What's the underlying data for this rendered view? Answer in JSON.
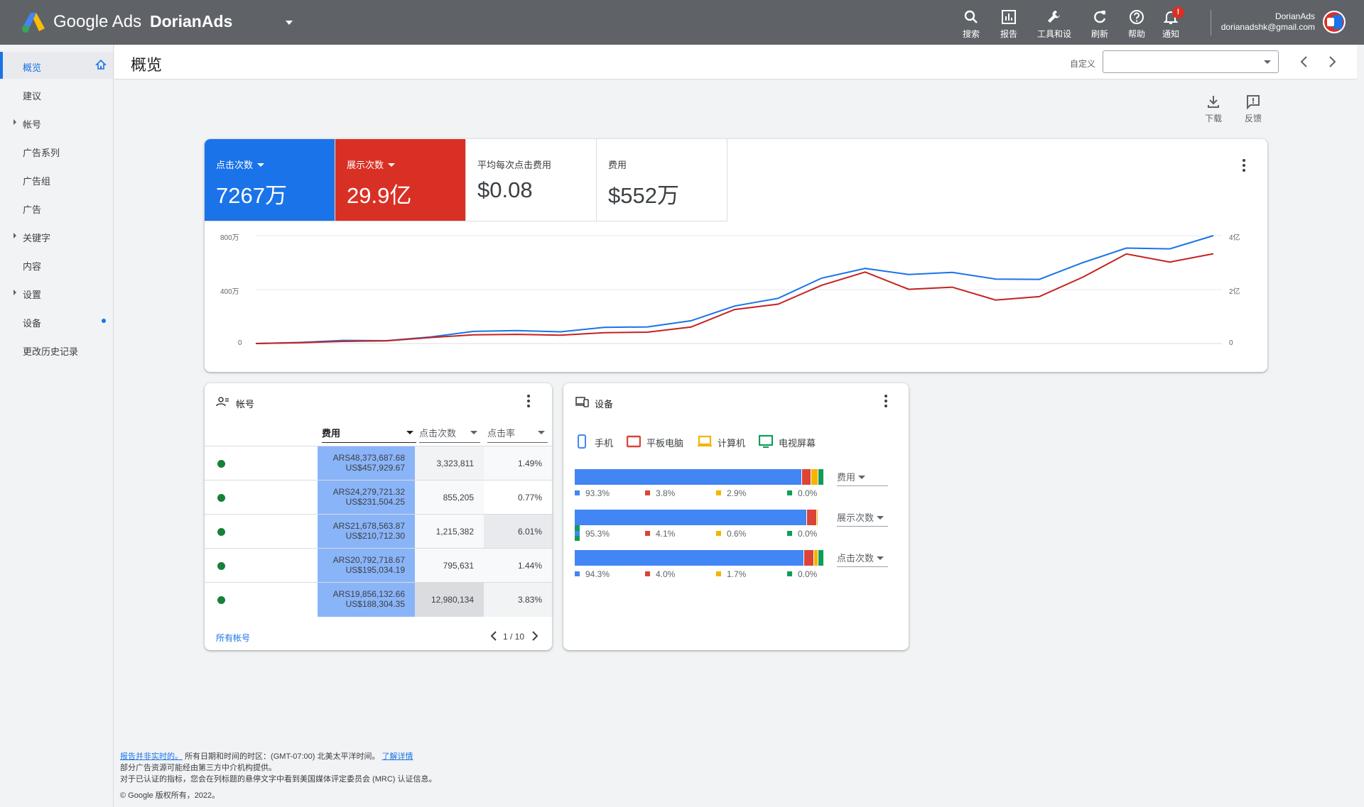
{
  "app": {
    "brand": "Google Ads",
    "account": "DorianAds"
  },
  "toolbar": [
    {
      "icon": "search-icon",
      "label": "搜索"
    },
    {
      "icon": "reports-icon",
      "label": "报告"
    },
    {
      "icon": "wrench-icon",
      "label": "工具和设置"
    },
    {
      "icon": "refresh-icon",
      "label": "刷新"
    },
    {
      "icon": "help-icon",
      "label": "帮助"
    },
    {
      "icon": "bell-icon",
      "label": "通知",
      "badge": "!"
    }
  ],
  "user": {
    "name": "DorianAds",
    "email": "dorianadshk@gmail.com"
  },
  "sidebar": {
    "items": [
      {
        "label": "概览",
        "active": true,
        "icon": "home-icon"
      },
      {
        "label": "建议"
      },
      {
        "label": "帐号",
        "expandable": true
      },
      {
        "label": "广告系列"
      },
      {
        "label": "广告组"
      },
      {
        "label": "广告"
      },
      {
        "label": "关键字",
        "expandable": true
      },
      {
        "label": "内容"
      },
      {
        "label": "设置",
        "expandable": true
      },
      {
        "label": "设备",
        "dot": true
      },
      {
        "label": "更改历史记录"
      }
    ]
  },
  "header": {
    "title": "概览",
    "custom_label": "自定义",
    "date_value": ""
  },
  "tools": {
    "download": "下载",
    "feedback": "反馈"
  },
  "metrics": [
    {
      "label": "点击次数",
      "value": "7267万",
      "color": "#1a73e8"
    },
    {
      "label": "展示次数",
      "value": "29.9亿",
      "color": "#d93025"
    },
    {
      "label": "平均每次点击费用",
      "value": "$0.08"
    },
    {
      "label": "费用",
      "value": "$552万"
    }
  ],
  "chart_data": {
    "type": "line",
    "left_axis": {
      "ticks": [
        "800万",
        "400万",
        "0"
      ],
      "range": [
        0,
        8000000
      ]
    },
    "right_axis": {
      "ticks": [
        "4亿",
        "2亿",
        "0"
      ],
      "range": [
        0,
        400000000
      ]
    },
    "series": [
      {
        "color": "#1a73e8",
        "axis": "left",
        "values": [
          0,
          80000,
          230000,
          210000,
          480000,
          900000,
          960000,
          870000,
          1200000,
          1230000,
          1690000,
          2780000,
          3350000,
          4850000,
          5570000,
          5120000,
          5280000,
          4780000,
          4760000,
          6000000,
          7080000,
          7020000,
          8000000
        ]
      },
      {
        "color": "#c5221f",
        "axis": "right",
        "values": [
          0,
          3000000,
          8000000,
          10000000,
          22000000,
          32000000,
          34000000,
          31000000,
          40000000,
          42000000,
          61000000,
          126000000,
          146000000,
          216000000,
          265000000,
          201000000,
          209000000,
          161000000,
          174000000,
          246000000,
          332000000,
          302000000,
          333000000
        ]
      }
    ]
  },
  "accounts": {
    "title": "帐号",
    "columns": [
      "费用",
      "点击次数",
      "点击率"
    ],
    "rows": [
      {
        "cost_ars": "ARS48,373,687.68",
        "cost_usd": "US$457,929.67",
        "clicks": "3,323,811",
        "ctr": "1.49%"
      },
      {
        "cost_ars": "ARS24,279,721.32",
        "cost_usd": "US$231,504.25",
        "clicks": "855,205",
        "ctr": "0.77%"
      },
      {
        "cost_ars": "ARS21,678,563.87",
        "cost_usd": "US$210,712.30",
        "clicks": "1,215,382",
        "ctr": "6.01%"
      },
      {
        "cost_ars": "ARS20,792,718.67",
        "cost_usd": "US$195,034.19",
        "clicks": "795,631",
        "ctr": "1.44%"
      },
      {
        "cost_ars": "ARS19,856,132.66",
        "cost_usd": "US$188,304.35",
        "clicks": "12,980,134",
        "ctr": "3.83%"
      }
    ],
    "link": "所有帐号",
    "pager": "1 / 10"
  },
  "devices": {
    "title": "设备",
    "legend": [
      {
        "label": "手机",
        "color": "#4285f4",
        "icon": "phone-icon"
      },
      {
        "label": "平板电脑",
        "color": "#db4437",
        "icon": "tablet-icon"
      },
      {
        "label": "计算机",
        "color": "#f4b400",
        "icon": "computer-icon"
      },
      {
        "label": "电视屏幕",
        "color": "#0f9d58",
        "icon": "tv-icon"
      }
    ],
    "bars": [
      {
        "metric": "费用",
        "values": [
          93.3,
          3.8,
          2.9,
          0.0
        ],
        "labels": [
          "93.3%",
          "3.8%",
          "2.9%",
          "0.0%"
        ]
      },
      {
        "metric": "展示次数",
        "values": [
          95.3,
          4.1,
          0.6,
          0.0
        ],
        "labels": [
          "95.3%",
          "4.1%",
          "0.6%",
          "0.0%"
        ]
      },
      {
        "metric": "点击次数",
        "values": [
          94.3,
          4.0,
          1.7,
          0.0
        ],
        "labels": [
          "94.3%",
          "4.0%",
          "1.7%",
          "0.0%"
        ]
      }
    ]
  },
  "footer": {
    "line1_link": "报告并非实时的。",
    "line1_text": "所有日期和时间的时区：(GMT-07:00) 北美太平洋时间。",
    "line1_link2": "了解详情",
    "line2": "部分广告资源可能经由第三方中介机构提供。",
    "line3": "对于已认证的指标，您会在列标题的悬停文字中看到美国媒体评定委员会 (MRC) 认证信息。",
    "line4": "© Google 版权所有，2022。"
  }
}
